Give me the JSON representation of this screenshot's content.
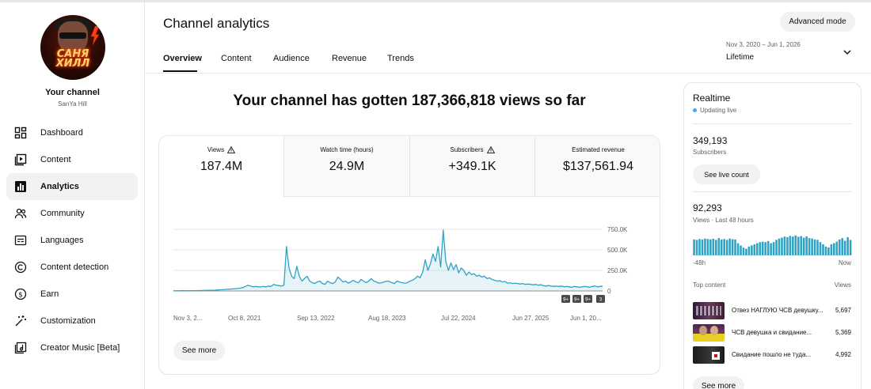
{
  "sidebar": {
    "channel_title": "Your channel",
    "channel_handle": "SanYa Hill",
    "avatar_text": "САНЯ ХИЛЛ",
    "items": [
      {
        "label": "Dashboard",
        "icon": "dashboard-icon",
        "active": false
      },
      {
        "label": "Content",
        "icon": "content-icon",
        "active": false
      },
      {
        "label": "Analytics",
        "icon": "analytics-icon",
        "active": true
      },
      {
        "label": "Community",
        "icon": "community-icon",
        "active": false
      },
      {
        "label": "Languages",
        "icon": "languages-icon",
        "active": false
      },
      {
        "label": "Content detection",
        "icon": "copyright-icon",
        "active": false
      },
      {
        "label": "Earn",
        "icon": "dollar-icon",
        "active": false
      },
      {
        "label": "Customization",
        "icon": "magic-wand-icon",
        "active": false
      },
      {
        "label": "Creator Music [Beta]",
        "icon": "music-icon",
        "active": false
      }
    ]
  },
  "header": {
    "title": "Channel analytics",
    "advanced_mode": "Advanced mode",
    "tabs": [
      "Overview",
      "Content",
      "Audience",
      "Revenue",
      "Trends"
    ],
    "active_tab": "Overview",
    "date_range": "Nov 3, 2020 – Jun 1, 2026",
    "range_label": "Lifetime"
  },
  "headline": "Your channel has gotten 187,366,818 views so far",
  "metrics": [
    {
      "label": "Views",
      "value": "187.4M",
      "warning": true
    },
    {
      "label": "Watch time (hours)",
      "value": "24.9M",
      "warning": false
    },
    {
      "label": "Subscribers",
      "value": "+349.1K",
      "warning": true
    },
    {
      "label": "Estimated revenue",
      "value": "$137,561.94",
      "warning": false
    }
  ],
  "see_more": "See more",
  "chart_data": {
    "type": "area",
    "series": [
      {
        "values": [
          2000,
          2000,
          2000,
          2500,
          2500,
          3000,
          3500,
          3500,
          4000,
          5000,
          5000,
          6000,
          7000,
          8000,
          9000,
          9000,
          10000,
          12000,
          14000,
          15000,
          18000,
          20000,
          22000,
          25000,
          28000,
          30000,
          35000,
          40000,
          55000,
          70000,
          60000,
          50000,
          55000,
          50000,
          48000,
          55000,
          50000,
          60000,
          55000,
          80000,
          70000,
          65000,
          60000,
          70000,
          540000,
          280000,
          180000,
          150000,
          300000,
          180000,
          120000,
          150000,
          180000,
          120000,
          100000,
          90000,
          110000,
          120000,
          90000,
          80000,
          120000,
          100000,
          90000,
          110000,
          170000,
          140000,
          110000,
          120000,
          95000,
          110000,
          130000,
          110000,
          100000,
          140000,
          120000,
          100000,
          120000,
          150000,
          120000,
          110000,
          95000,
          100000,
          110000,
          120000,
          115000,
          100000,
          90000,
          120000,
          110000,
          100000,
          95000,
          100000,
          120000,
          130000,
          150000,
          180000,
          160000,
          230000,
          380000,
          250000,
          330000,
          450000,
          360000,
          540000,
          290000,
          740000,
          360000,
          250000,
          340000,
          260000,
          320000,
          220000,
          280000,
          250000,
          190000,
          230000,
          200000,
          210000,
          180000,
          190000,
          170000,
          180000,
          150000,
          160000,
          140000,
          130000,
          120000,
          125000,
          110000,
          115000,
          95000,
          100000,
          90000,
          95000,
          90000,
          85000,
          90000,
          80000,
          85000,
          80000,
          75000,
          80000,
          70000,
          75000,
          65000,
          60000,
          65000,
          60000,
          55000,
          60000,
          55000,
          60000,
          50000,
          55000,
          50000,
          45000,
          55000,
          50000,
          45000,
          50000,
          55000,
          50000,
          45000,
          55000,
          60000,
          50000,
          55000,
          60000
        ]
      }
    ],
    "x_tick_labels": [
      "Nov 3, 2...",
      "Oct 8, 2021",
      "Sep 13, 2022",
      "Aug 18, 2023",
      "Jul 22, 2024",
      "Jun 27, 2025",
      "Jun 1, 20..."
    ],
    "y_tick_labels": [
      "750.0K",
      "500.0K",
      "250.0K",
      "0"
    ],
    "ylim": [
      0,
      800000
    ],
    "grid": true,
    "line_color": "#2fa3c4",
    "upload_markers": [
      "9+",
      "9+",
      "9+",
      "3"
    ]
  },
  "realtime": {
    "title": "Realtime",
    "status": "Updating live",
    "subscribers": "349,193",
    "subscribers_label": "Subscribers",
    "live_count_btn": "See live count",
    "views": "92,293",
    "views_label": "Views · Last 48 hours",
    "axis_left": "-48h",
    "axis_right": "Now",
    "bar_values": [
      0.72,
      0.7,
      0.74,
      0.72,
      0.76,
      0.74,
      0.72,
      0.75,
      0.7,
      0.78,
      0.72,
      0.74,
      0.7,
      0.76,
      0.73,
      0.72,
      0.55,
      0.45,
      0.35,
      0.3,
      0.4,
      0.45,
      0.5,
      0.55,
      0.6,
      0.62,
      0.6,
      0.65,
      0.55,
      0.6,
      0.7,
      0.76,
      0.8,
      0.85,
      0.82,
      0.88,
      0.85,
      0.9,
      0.84,
      0.87,
      0.8,
      0.86,
      0.78,
      0.76,
      0.72,
      0.7,
      0.6,
      0.5,
      0.4,
      0.36,
      0.5,
      0.55,
      0.62,
      0.72,
      0.78,
      0.66,
      0.82,
      0.7
    ],
    "bar_color": "#2fa3c4",
    "top_content_label": "Top content",
    "views_col_label": "Views",
    "top_content": [
      {
        "title": "Отвез НАГЛУЮ ЧСВ девушку...",
        "views": "5,697"
      },
      {
        "title": "ЧСВ девушка и свидание...",
        "views": "5,369"
      },
      {
        "title": "Свидание пошло не туда...",
        "views": "4,992"
      }
    ],
    "see_more": "See more"
  }
}
